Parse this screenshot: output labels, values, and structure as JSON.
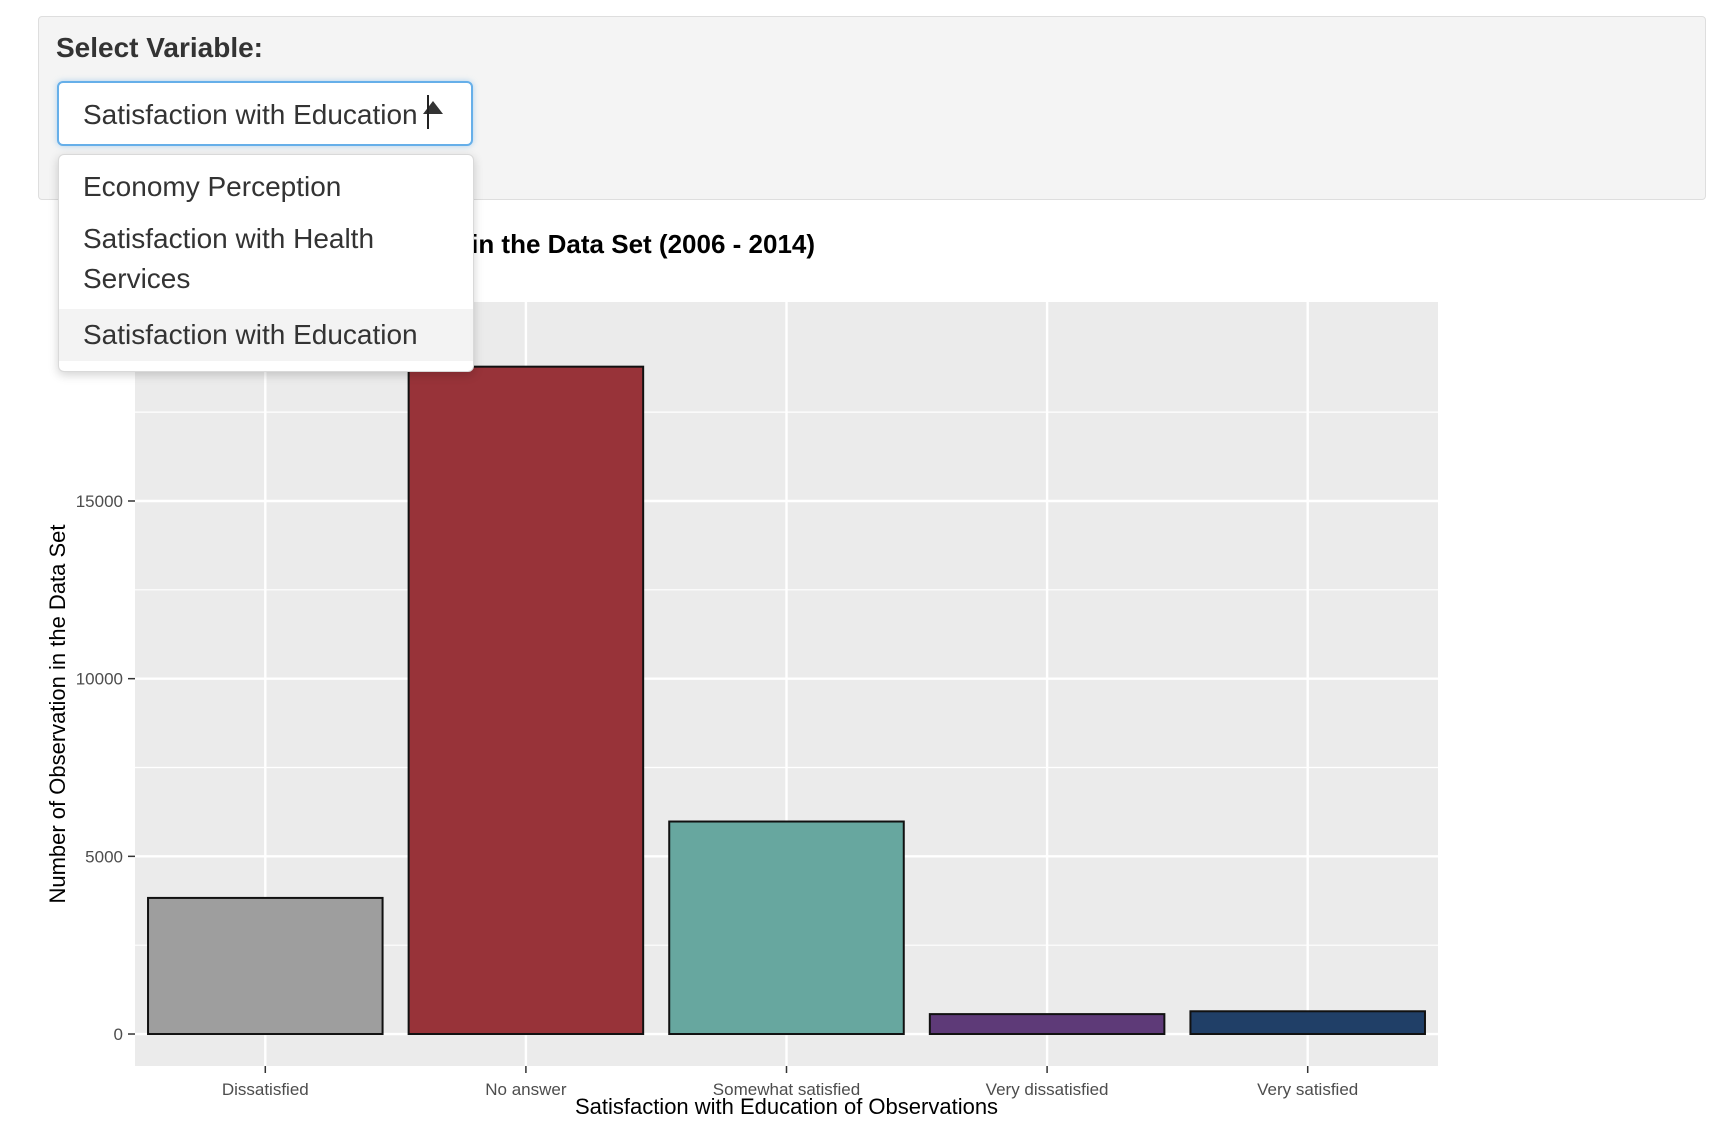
{
  "control_panel": {
    "label": "Select Variable:",
    "selected_value": "Satisfaction with Education",
    "options": [
      {
        "label": "Economy Perception"
      },
      {
        "label": "Satisfaction with Health Services"
      },
      {
        "label": "Satisfaction with Education"
      }
    ],
    "options_display": [
      [
        "Economy Perception"
      ],
      [
        "Satisfaction with Health",
        "Services"
      ],
      [
        "Satisfaction with Education"
      ]
    ],
    "focus_color": "#66afe9"
  },
  "chart_data": {
    "type": "bar",
    "title_visible": "n in the Data Set (2006 - 2014)",
    "xlabel": "Satisfaction with Education of Observations",
    "ylabel": "Number of Observation in the Data Set",
    "categories": [
      "Dissatisfied",
      "No answer",
      "Somewhat satisfied",
      "Very dissatisfied",
      "Very satisfied"
    ],
    "values": [
      3830,
      18780,
      5980,
      560,
      640
    ],
    "colors": [
      "#9e9e9e",
      "#983339",
      "#67a79f",
      "#5e3a78",
      "#203f67"
    ],
    "ylim": [
      -900,
      20600
    ],
    "yticks": [
      0,
      5000,
      10000,
      15000
    ],
    "grid": true,
    "panel_bg": "#ebebeb"
  }
}
